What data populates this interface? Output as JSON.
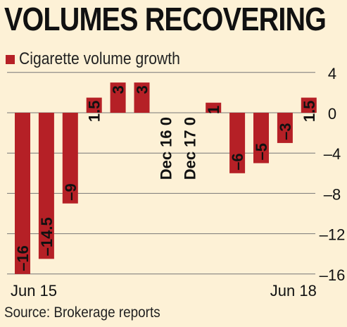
{
  "title": "VOLUMES RECOVERING",
  "source": "Source: Brokerage reports",
  "colors": {
    "bar": "#b52026",
    "grid": "#777777",
    "background": "#fdf1d6",
    "text": "#111111"
  },
  "chart_data": {
    "type": "bar",
    "title": "VOLUMES RECOVERING",
    "legend": {
      "position": "top-left",
      "entries": [
        "Cigarette volume growth"
      ]
    },
    "series": [
      {
        "name": "Cigarette volume growth",
        "values": [
          -16,
          -14.5,
          -9,
          1.5,
          3,
          3,
          0,
          0,
          1,
          -6,
          -5,
          -3,
          1.5
        ]
      }
    ],
    "bar_labels": [
      "-16",
      "-14.5",
      "-9",
      "1.5",
      "3",
      "3",
      "Dec 16 0",
      "Dec 17 0",
      "1",
      "-6",
      "-5",
      "-3",
      "1.5"
    ],
    "x_tick_labels": [
      {
        "index": 0,
        "label": "Jun 15"
      },
      {
        "index": 12,
        "label": "Jun 18"
      }
    ],
    "y_axis": {
      "position": "right",
      "ticks": [
        4,
        0,
        -4,
        -8,
        -12,
        -16
      ],
      "ylim": [
        -16.8,
        4.5
      ]
    },
    "grid": true
  }
}
